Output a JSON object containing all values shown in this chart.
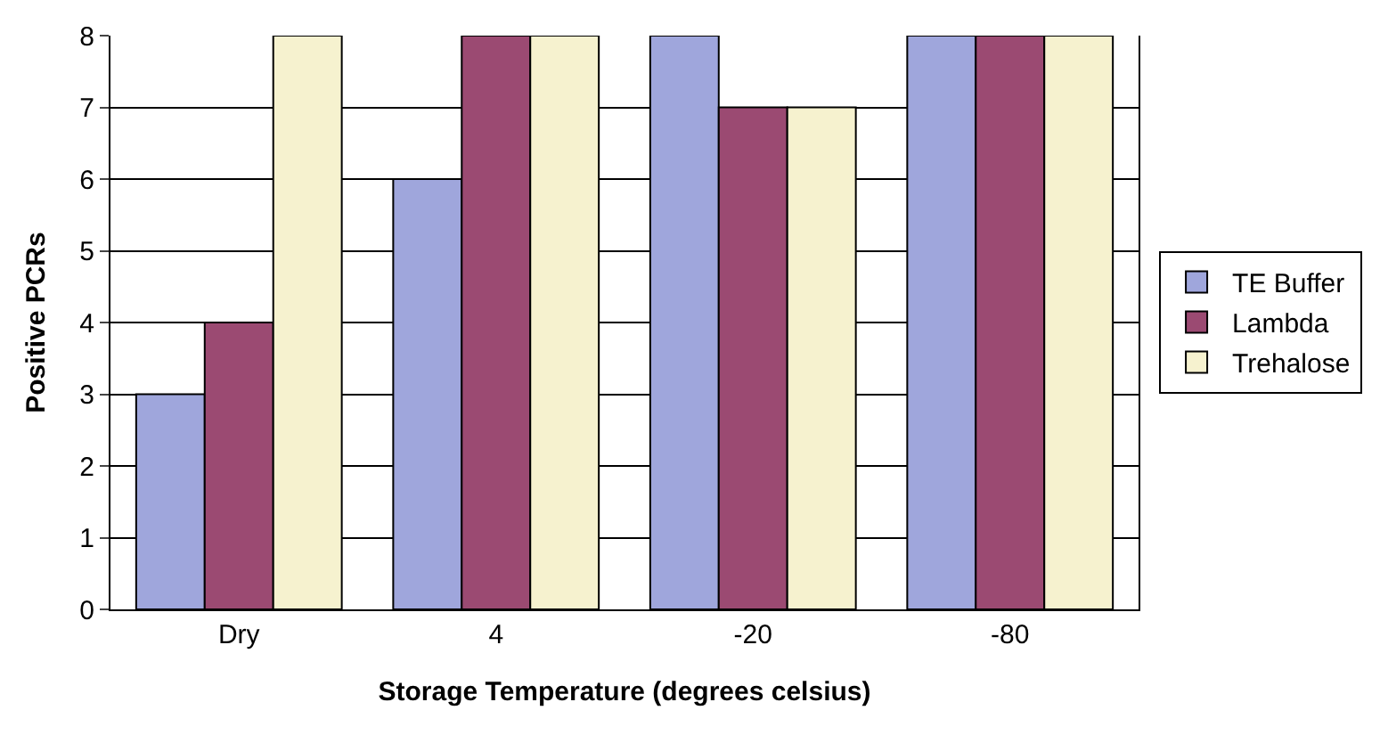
{
  "chart_data": {
    "type": "bar",
    "xlabel": "Storage Temperature (degrees celsius)",
    "ylabel": "Positive PCRs",
    "categories": [
      "Dry",
      "4",
      "-20",
      "-80"
    ],
    "series": [
      {
        "name": "TE Buffer",
        "color": "#9fa6dc",
        "values": [
          3,
          6,
          8,
          8
        ]
      },
      {
        "name": "Lambda",
        "color": "#9b4a72",
        "values": [
          4,
          8,
          7,
          8
        ]
      },
      {
        "name": "Trehalose",
        "color": "#f6f2cf",
        "values": [
          8,
          8,
          7,
          8
        ]
      }
    ],
    "ylim": [
      0,
      8
    ],
    "yticks": [
      0,
      1,
      2,
      3,
      4,
      5,
      6,
      7,
      8
    ],
    "grid": "y",
    "legend": "right"
  }
}
